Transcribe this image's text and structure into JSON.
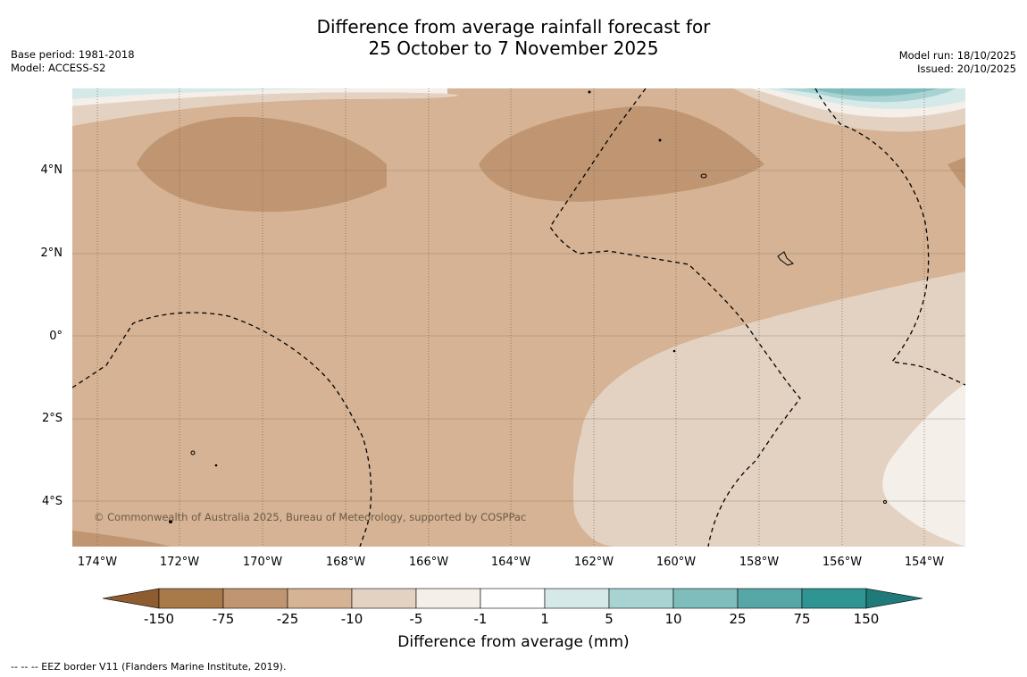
{
  "title": {
    "line1": "Difference from average rainfall forecast for",
    "line2": "25 October to 7 November 2025"
  },
  "meta_left": {
    "base_period": "Base period: 1981-2018",
    "model": "Model: ACCESS-S2"
  },
  "meta_right": {
    "model_run": "Model run: 18/10/2025",
    "issued": "Issued: 20/10/2025"
  },
  "map": {
    "lat_ticks": [
      "4°N",
      "2°N",
      "0°",
      "2°S",
      "4°S"
    ],
    "lon_ticks": [
      "174°W",
      "172°W",
      "170°W",
      "168°W",
      "166°W",
      "164°W",
      "162°W",
      "160°W",
      "158°W",
      "156°W",
      "154°W"
    ],
    "copyright": "© Commonwealth of Australia 2025, Bureau of Meteorology, supported by COSPPac",
    "lat_range": [
      -5.2,
      5.9
    ],
    "lon_range": [
      -174.6,
      -153.1
    ]
  },
  "colorbar": {
    "labels": [
      "-150",
      "-75",
      "-25",
      "-10",
      "-5",
      "-1",
      "1",
      "5",
      "10",
      "25",
      "75",
      "150"
    ],
    "colors": [
      "#a87a49",
      "#c09672",
      "#d5b394",
      "#e3d2c2",
      "#f4efe9",
      "#ffffff",
      "#d5e9e8",
      "#a9d2d3",
      "#7fbdbc",
      "#58a7a7",
      "#2f9593"
    ],
    "under_color": "#8e5c2f",
    "over_color": "#1f7a79",
    "title": "Difference from average (mm)"
  },
  "legend_note": "--  --  -- EEZ border V11 (Flanders Marine Institute, 2019)."
}
